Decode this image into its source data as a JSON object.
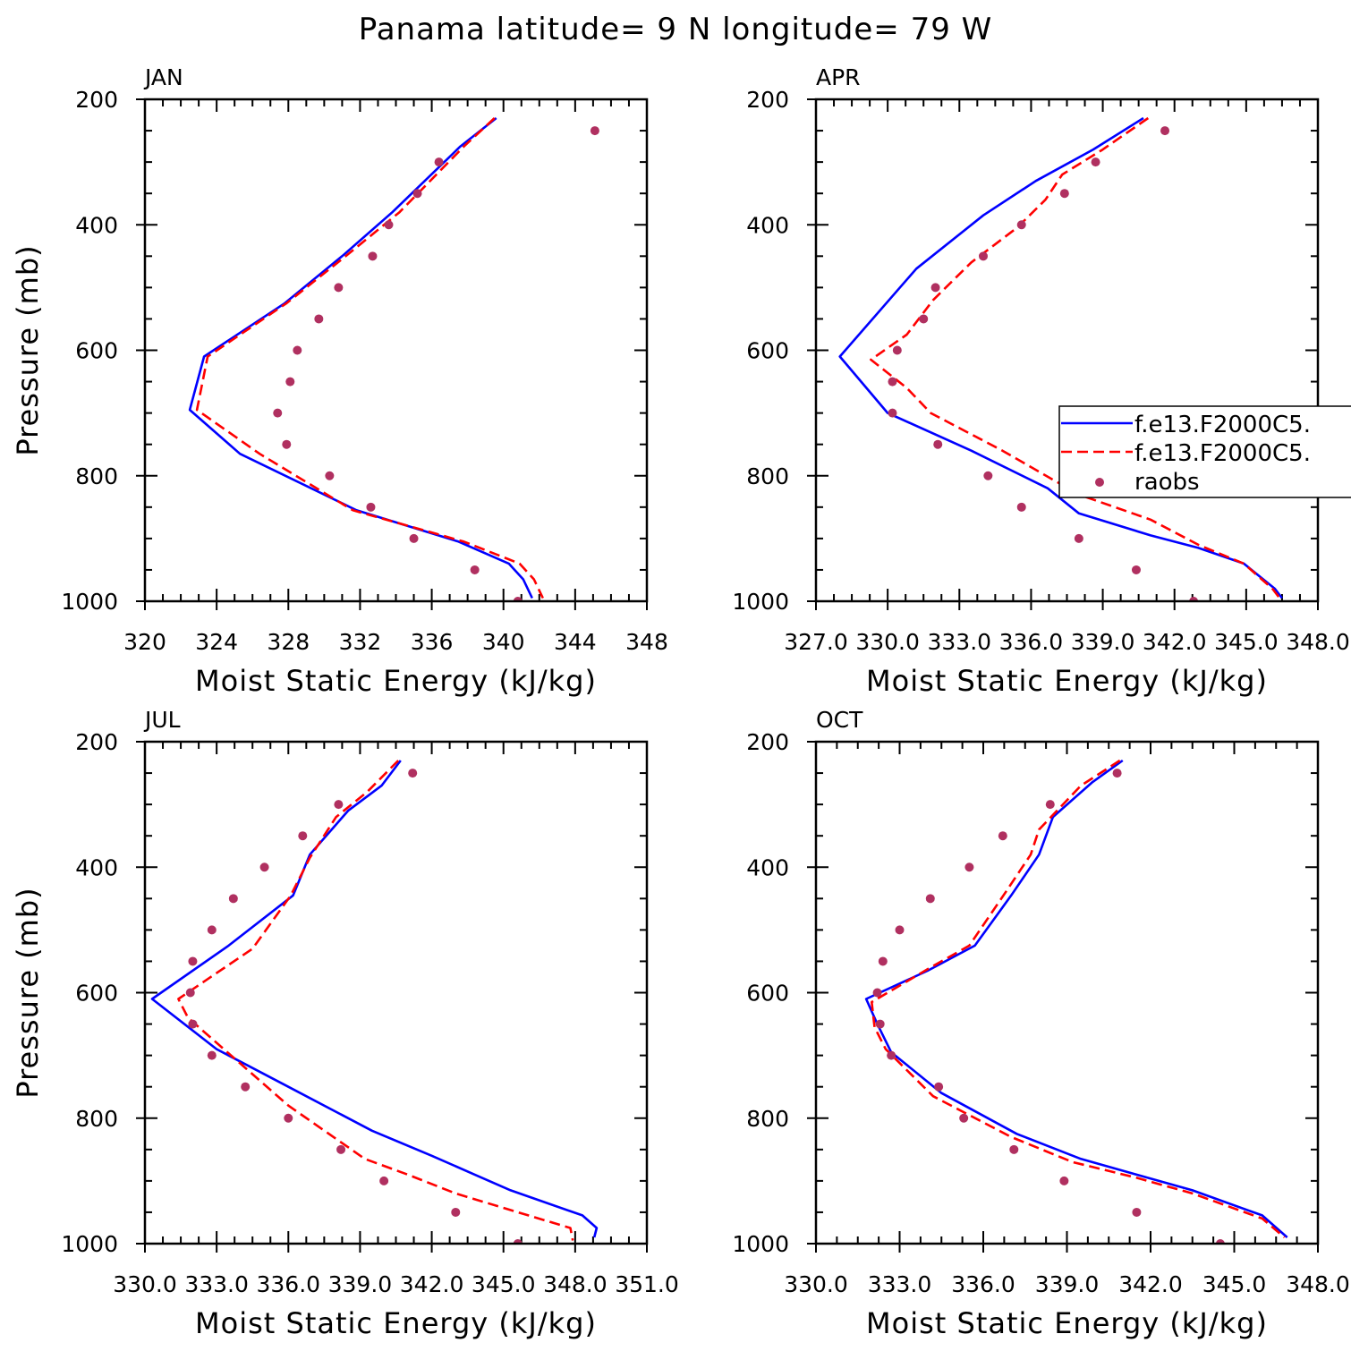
{
  "page_title": "Panama  latitude= 9 N longitude= 79 W",
  "colors": {
    "model1": "#0000ff",
    "model2": "#ff0000",
    "raobs": "#b03060",
    "axis": "#000000"
  },
  "chart_data": [
    {
      "type": "line",
      "title": "JAN",
      "xlabel": "Moist Static Energy (kJ/kg)",
      "ylabel": "Pressure (mb)",
      "xlim": [
        320,
        348
      ],
      "ylim": [
        1000,
        200
      ],
      "xticks": [
        "320",
        "324",
        "328",
        "332",
        "336",
        "340",
        "344",
        "348"
      ],
      "yticks": [
        "200",
        "400",
        "600",
        "800",
        "1000"
      ],
      "series": [
        {
          "name": "f.e13.F2000C5.",
          "style": "solid",
          "x": [
            339.6,
            337.6,
            333.8,
            331.0,
            327.8,
            323.3,
            322.5,
            325.3,
            331.8,
            337.5,
            340.3,
            341.1,
            341.6
          ],
          "y": [
            230,
            275,
            380,
            450,
            525,
            610,
            695,
            765,
            855,
            905,
            940,
            965,
            995
          ]
        },
        {
          "name": "f.e13.F2000C5.",
          "style": "dashed",
          "x": [
            339.5,
            337.8,
            334.2,
            331.2,
            327.9,
            323.5,
            322.9,
            326.4,
            331.6,
            337.8,
            340.9,
            341.7,
            342.2
          ],
          "y": [
            230,
            275,
            380,
            450,
            525,
            610,
            695,
            765,
            855,
            905,
            940,
            965,
            995
          ]
        },
        {
          "name": "raobs",
          "style": "dots",
          "x": [
            345.1,
            336.4,
            335.2,
            333.6,
            332.7,
            330.8,
            329.7,
            328.5,
            328.1,
            327.4,
            327.9,
            330.3,
            332.6,
            335.0,
            338.4,
            340.8
          ],
          "y": [
            250,
            300,
            350,
            400,
            450,
            500,
            550,
            600,
            650,
            700,
            750,
            800,
            850,
            900,
            950,
            1000
          ]
        }
      ]
    },
    {
      "type": "line",
      "title": "APR",
      "xlabel": "Moist Static Energy (kJ/kg)",
      "ylabel": "",
      "xlim": [
        327.0,
        348.0
      ],
      "ylim": [
        1000,
        200
      ],
      "xticks": [
        "327.0",
        "330.0",
        "333.0",
        "336.0",
        "339.0",
        "342.0",
        "345.0",
        "348.0"
      ],
      "yticks": [
        "200",
        "400",
        "600",
        "800",
        "1000"
      ],
      "series": [
        {
          "name": "f.e13.F2000C5.",
          "style": "solid",
          "x": [
            340.7,
            338.6,
            336.2,
            334.0,
            331.2,
            328.0,
            330.0,
            333.5,
            336.7,
            338.0,
            341.0,
            343.0,
            344.9,
            346.2,
            346.5
          ],
          "y": [
            230,
            280,
            330,
            385,
            470,
            610,
            700,
            760,
            820,
            860,
            895,
            915,
            940,
            980,
            995
          ]
        },
        {
          "name": "f.e13.F2000C5.",
          "style": "dashed",
          "x": [
            340.9,
            339.0,
            337.3,
            336.6,
            335.4,
            333.5,
            331.9,
            330.8,
            329.3,
            330.8,
            331.8,
            334.8,
            338.0,
            341.0,
            343.0,
            344.9,
            346.1,
            346.4
          ],
          "y": [
            230,
            280,
            320,
            360,
            405,
            460,
            520,
            575,
            615,
            660,
            700,
            760,
            830,
            870,
            910,
            940,
            980,
            995
          ]
        },
        {
          "name": "raobs",
          "style": "dots",
          "x": [
            341.6,
            338.7,
            337.4,
            335.6,
            334.0,
            332.0,
            331.5,
            330.4,
            330.2,
            330.2,
            332.1,
            334.2,
            335.6,
            338.0,
            340.4,
            342.8
          ],
          "y": [
            250,
            300,
            350,
            400,
            450,
            500,
            550,
            600,
            650,
            700,
            750,
            800,
            850,
            900,
            950,
            1000
          ]
        }
      ],
      "legend": {
        "placement": "right",
        "entries": [
          {
            "label": "f.e13.F2000C5.",
            "style": "solid"
          },
          {
            "label": "f.e13.F2000C5.",
            "style": "dashed"
          },
          {
            "label": "raobs",
            "style": "dots"
          }
        ]
      }
    },
    {
      "type": "line",
      "title": "JUL",
      "xlabel": "Moist Static Energy (kJ/kg)",
      "ylabel": "Pressure (mb)",
      "xlim": [
        330.0,
        351.0
      ],
      "ylim": [
        1000,
        200
      ],
      "xticks": [
        "330.0",
        "333.0",
        "336.0",
        "339.0",
        "342.0",
        "345.0",
        "348.0",
        "351.0"
      ],
      "yticks": [
        "200",
        "400",
        "600",
        "800",
        "1000"
      ],
      "series": [
        {
          "name": "f.e13.F2000C5.",
          "style": "solid",
          "x": [
            340.7,
            339.9,
            338.5,
            336.9,
            336.2,
            333.5,
            330.3,
            333.0,
            336.0,
            339.5,
            342.0,
            343.8,
            345.3,
            348.3,
            348.9,
            348.8
          ],
          "y": [
            230,
            270,
            310,
            380,
            445,
            525,
            610,
            690,
            750,
            820,
            860,
            890,
            915,
            955,
            975,
            990
          ]
        },
        {
          "name": "f.e13.F2000C5.",
          "style": "dashed",
          "x": [
            340.6,
            339.3,
            338.0,
            336.9,
            336.1,
            334.5,
            331.4,
            331.8,
            333.3,
            336.0,
            339.2,
            341.0,
            343.0,
            345.6,
            347.8,
            347.9
          ],
          "y": [
            230,
            280,
            320,
            385,
            445,
            530,
            610,
            640,
            690,
            780,
            865,
            890,
            920,
            950,
            975,
            995
          ]
        },
        {
          "name": "raobs",
          "style": "dots",
          "x": [
            341.2,
            338.1,
            336.6,
            335.0,
            333.7,
            332.8,
            332.0,
            331.9,
            332.0,
            332.8,
            334.2,
            336.0,
            338.2,
            340.0,
            343.0,
            345.6
          ],
          "y": [
            250,
            300,
            350,
            400,
            450,
            500,
            550,
            600,
            650,
            700,
            750,
            800,
            850,
            900,
            950,
            1000
          ]
        }
      ]
    },
    {
      "type": "line",
      "title": "OCT",
      "xlabel": "Moist Static Energy (kJ/kg)",
      "ylabel": "",
      "xlim": [
        330.0,
        348.0
      ],
      "ylim": [
        1000,
        200
      ],
      "xticks": [
        "330.0",
        "333.0",
        "336.0",
        "339.0",
        "342.0",
        "345.0",
        "348.0"
      ],
      "yticks": [
        "200",
        "400",
        "600",
        "800",
        "1000"
      ],
      "series": [
        {
          "name": "f.e13.F2000C5.",
          "style": "solid",
          "x": [
            341.0,
            339.9,
            338.5,
            338.0,
            337.0,
            335.7,
            334.0,
            331.8,
            332.2,
            332.7,
            334.5,
            337.2,
            339.5,
            341.5,
            343.5,
            346.0,
            346.9
          ],
          "y": [
            230,
            265,
            320,
            380,
            445,
            525,
            565,
            610,
            650,
            695,
            760,
            825,
            865,
            890,
            915,
            955,
            990
          ]
        },
        {
          "name": "f.e13.F2000C5.",
          "style": "dashed",
          "x": [
            340.9,
            339.5,
            338.0,
            337.7,
            336.8,
            335.5,
            334.1,
            332.0,
            332.1,
            332.5,
            334.2,
            337.0,
            339.2,
            341.5,
            343.5,
            346.0,
            346.8
          ],
          "y": [
            230,
            270,
            340,
            380,
            440,
            525,
            560,
            615,
            655,
            690,
            765,
            830,
            870,
            895,
            920,
            960,
            990
          ]
        },
        {
          "name": "raobs",
          "style": "dots",
          "x": [
            340.8,
            338.4,
            336.7,
            335.5,
            334.1,
            333.0,
            332.4,
            332.2,
            332.3,
            332.7,
            334.4,
            335.3,
            337.1,
            338.9,
            341.5,
            344.5
          ],
          "y": [
            250,
            300,
            350,
            400,
            450,
            500,
            550,
            600,
            650,
            700,
            750,
            800,
            850,
            900,
            950,
            1000
          ]
        }
      ]
    }
  ]
}
